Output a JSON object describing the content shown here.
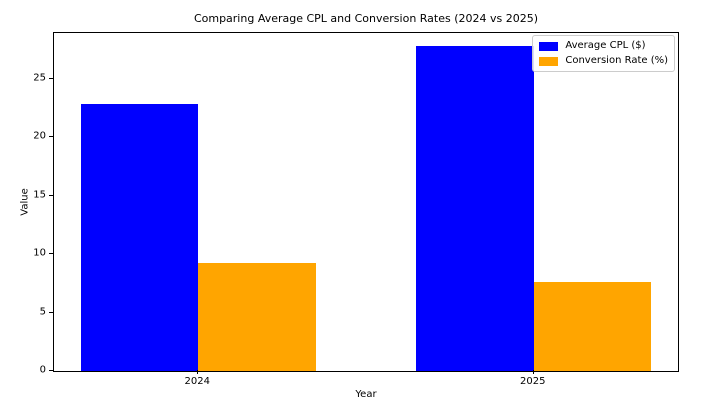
{
  "chart_data": {
    "type": "bar",
    "title": "Comparing Average CPL and Conversion Rates (2024 vs 2025)",
    "xlabel": "Year",
    "ylabel": "Value",
    "categories": [
      "2024",
      "2025"
    ],
    "series": [
      {
        "name": "Average CPL ($)",
        "color": "#0000ff",
        "values": [
          22.8,
          27.75
        ]
      },
      {
        "name": "Conversion Rate (%)",
        "color": "#ffa500",
        "values": [
          9.2,
          7.65
        ]
      }
    ],
    "yticks": [
      0,
      5,
      10,
      15,
      20,
      25
    ],
    "ylim": [
      0,
      28.9
    ],
    "xlim": [
      -0.43,
      1.43
    ],
    "bar_width": 0.35,
    "grid": false,
    "legend_position": "upper right",
    "background_color": "#ffffff",
    "text_color": "#000000"
  }
}
